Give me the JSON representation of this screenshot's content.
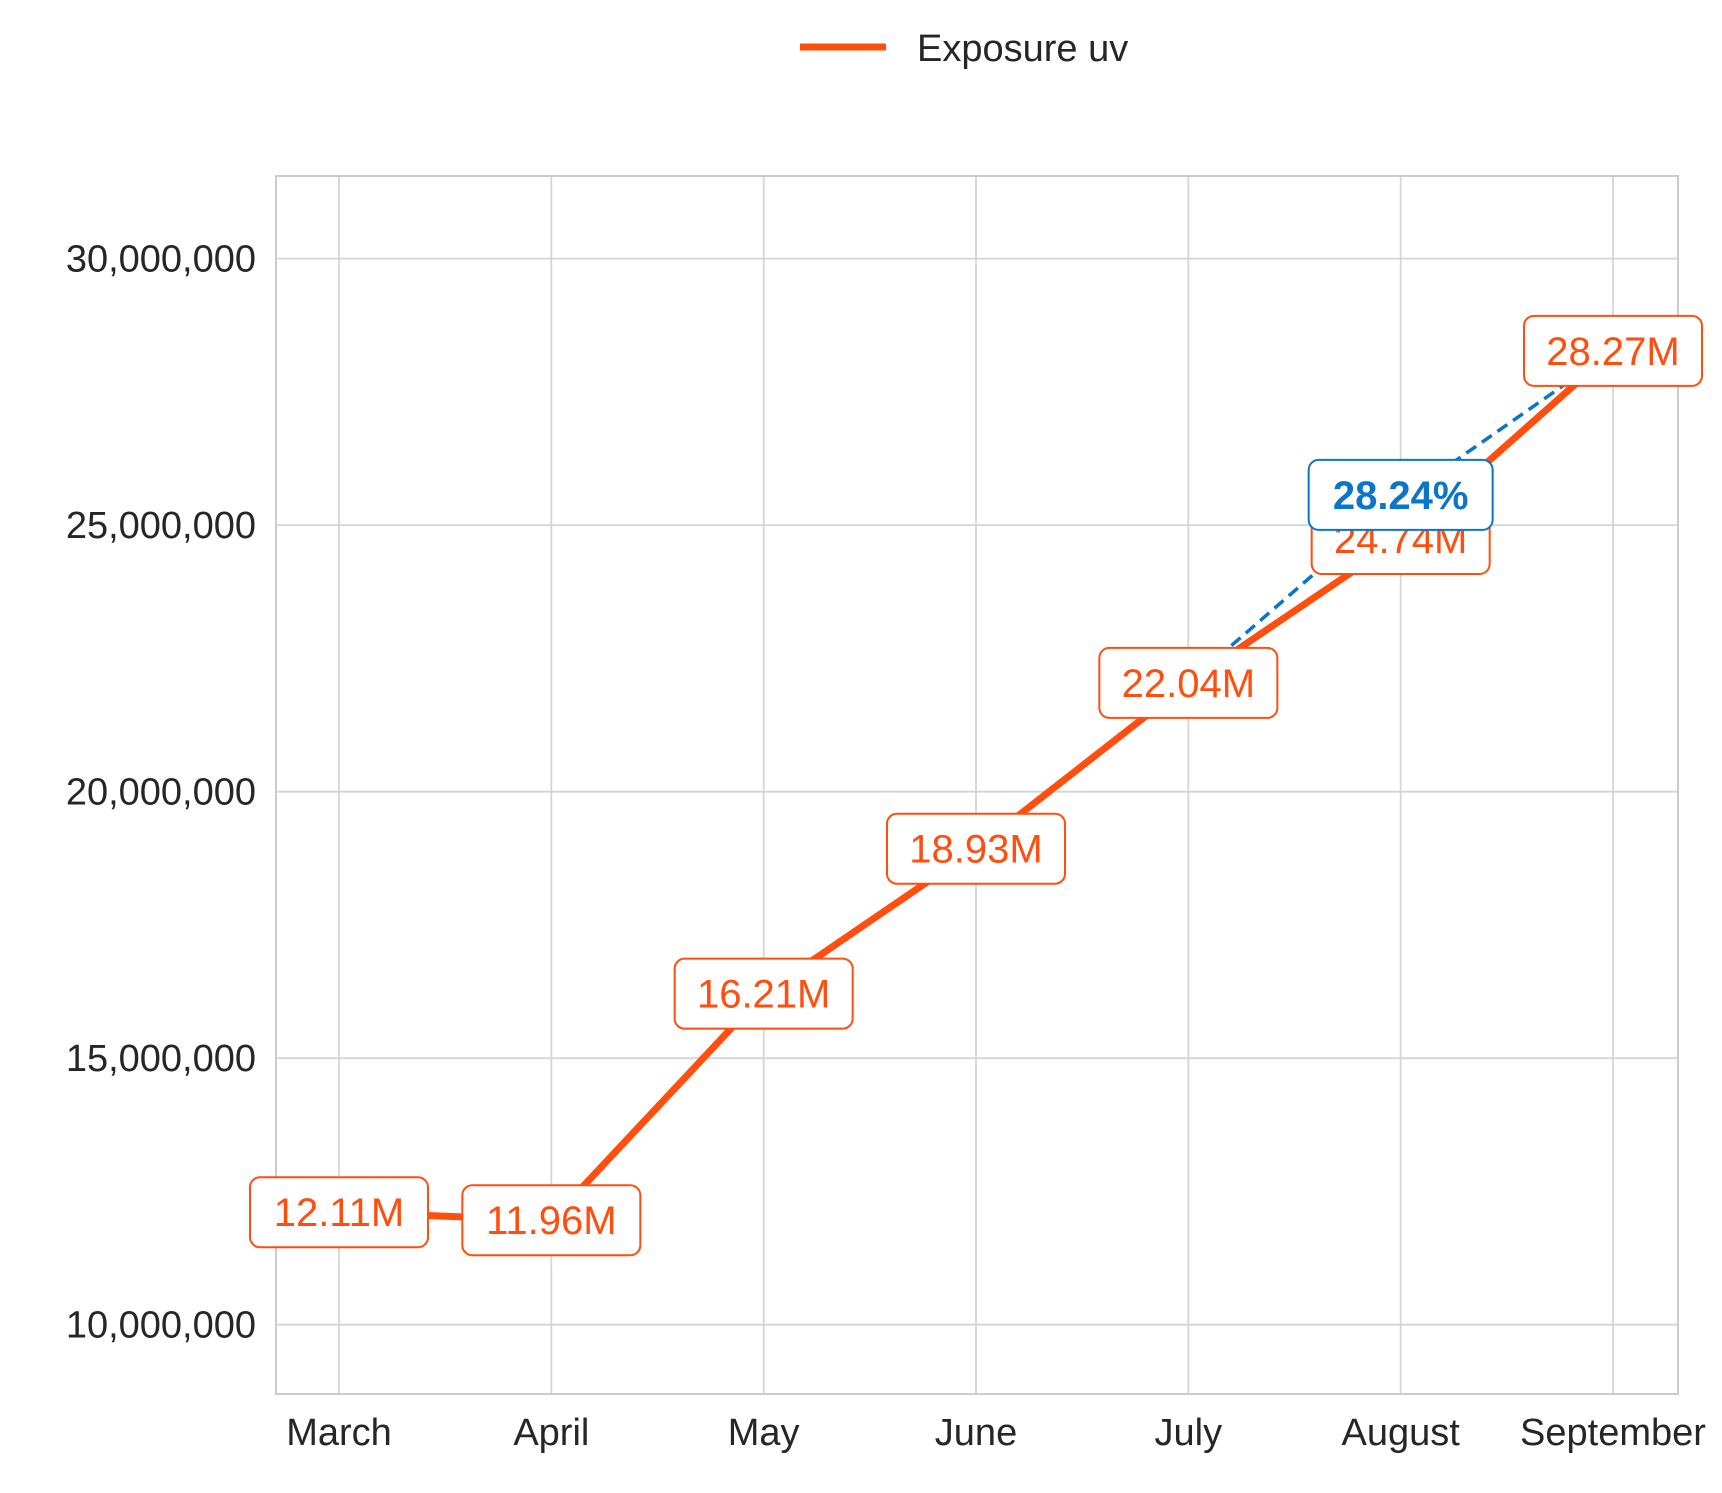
{
  "chart_data": {
    "type": "line",
    "categories": [
      "March",
      "April",
      "May",
      "June",
      "July",
      "August",
      "September"
    ],
    "series": [
      {
        "name": "Exposure uv",
        "values": [
          12110000,
          11960000,
          16210000,
          18930000,
          22040000,
          24740000,
          28270000
        ],
        "labels": [
          "12.11M",
          "11.96M",
          "16.21M",
          "18.93M",
          "22.04M",
          "24.74M",
          "28.27M"
        ],
        "color": "#ff4e0d"
      }
    ],
    "y_ticks": [
      10000000,
      15000000,
      20000000,
      25000000,
      30000000
    ],
    "y_tick_labels": [
      "10,000,000",
      "15,000,000",
      "20,000,000",
      "25,000,000",
      "30,000,000"
    ],
    "ylim": [
      8700000,
      31550000
    ],
    "grid": true,
    "legend": {
      "placement": "top-center",
      "entries": [
        "Exposure uv"
      ]
    },
    "annotation": {
      "text": "28.24%",
      "from_category": "July",
      "to_category": "September",
      "color": "#0a75c9",
      "style": "dashed"
    }
  }
}
